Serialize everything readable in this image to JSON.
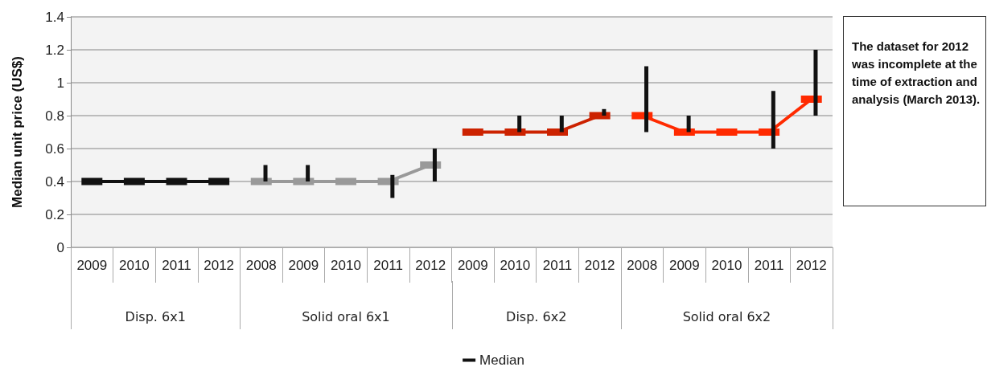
{
  "chart_data": {
    "type": "line",
    "ylabel": "Median unit price (US$)",
    "categories": [
      "2009",
      "2010",
      "2011",
      "2012",
      "2008",
      "2009",
      "2010",
      "2011",
      "2012",
      "2009",
      "2010",
      "2011",
      "2012",
      "2008",
      "2009",
      "2010",
      "2011",
      "2012"
    ],
    "series": [
      {
        "name": "Median",
        "color": "#111111",
        "values": [
          0.4,
          0.4,
          0.4,
          0.4,
          null,
          null,
          null,
          null,
          null,
          null,
          null,
          null,
          null,
          null,
          null,
          null,
          null,
          null
        ],
        "errors": [
          null,
          null,
          null,
          null,
          null,
          null,
          null,
          null,
          null,
          null,
          null,
          null,
          null,
          null,
          null,
          null,
          null,
          null
        ]
      },
      {
        "color": "#999999",
        "values": [
          null,
          null,
          null,
          null,
          0.4,
          0.4,
          0.4,
          0.4,
          0.5,
          null,
          null,
          null,
          null,
          null,
          null,
          null,
          null,
          null
        ],
        "errors": [
          null,
          null,
          null,
          null,
          [
            0.4,
            0.5
          ],
          [
            0.4,
            0.5
          ],
          null,
          [
            0.3,
            0.44
          ],
          [
            0.4,
            0.6
          ],
          null,
          null,
          null,
          null,
          null,
          null,
          null,
          null,
          null
        ]
      },
      {
        "color": "#cc2200",
        "values": [
          null,
          null,
          null,
          null,
          null,
          null,
          null,
          null,
          null,
          0.7,
          0.7,
          0.7,
          0.8,
          null,
          null,
          null,
          null,
          null
        ],
        "errors": [
          null,
          null,
          null,
          null,
          null,
          null,
          null,
          null,
          null,
          null,
          [
            0.7,
            0.8
          ],
          [
            0.7,
            0.8
          ],
          [
            0.8,
            0.84
          ],
          null,
          null,
          null,
          null,
          null
        ]
      },
      {
        "color": "#ff2a00",
        "values": [
          null,
          null,
          null,
          null,
          null,
          null,
          null,
          null,
          null,
          null,
          null,
          null,
          null,
          0.8,
          0.7,
          0.7,
          0.7,
          0.9
        ],
        "errors": [
          null,
          null,
          null,
          null,
          null,
          null,
          null,
          null,
          null,
          null,
          null,
          null,
          null,
          [
            0.7,
            1.1
          ],
          [
            0.7,
            0.8
          ],
          null,
          [
            0.6,
            0.95
          ],
          [
            0.8,
            1.2
          ]
        ]
      }
    ],
    "ylim": [
      0,
      1.4
    ],
    "yticks": [
      0,
      0.2,
      0.4,
      0.6,
      0.8,
      1,
      1.2,
      1.4
    ],
    "grid": "y",
    "legend": "bottom",
    "marker": "square",
    "line_style": "solid",
    "annotations": [
      {
        "text": "Disp. 6x1"
      },
      {
        "text": "Solid oral 6x1"
      },
      {
        "text": "Disp. 6x2"
      },
      {
        "text": "Solid oral 6x2"
      },
      "The dataset for 2012 was incomplete at the time of extraction and analysis (March 2013)."
    ]
  }
}
